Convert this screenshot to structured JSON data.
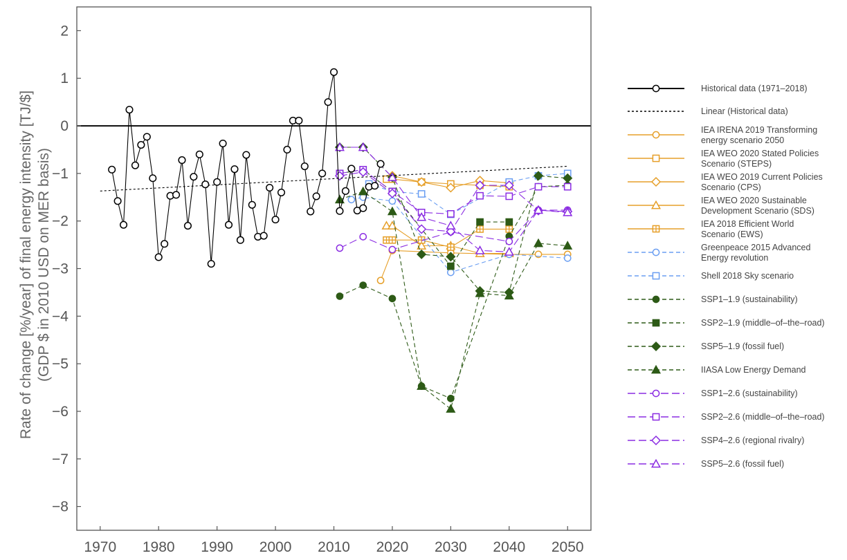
{
  "chart_data": {
    "type": "line",
    "title": "",
    "ylabel": [
      "Rate of change [%/year] of final energy intensity [TJ/$]",
      "(GDP $ in 2010 USD on MER basis)"
    ],
    "xlabel": "",
    "xlim": [
      1966,
      2054
    ],
    "ylim": [
      -8.5,
      2.5
    ],
    "x_ticks": [
      1970,
      1980,
      1990,
      2000,
      2010,
      2020,
      2030,
      2040,
      2050
    ],
    "y_ticks": [
      2,
      1,
      0,
      -1,
      -2,
      -3,
      -4,
      -5,
      -6,
      -7,
      -8
    ],
    "x_tick_labels": [
      "1970",
      "1980",
      "1990",
      "2000",
      "2010",
      "2020",
      "2030",
      "2040",
      "2050"
    ],
    "y_tick_labels": [
      "2",
      "1",
      "0",
      "−1",
      "−2",
      "−3",
      "−4",
      "−5",
      "−6",
      "−7",
      "−8"
    ],
    "zero_line": 0,
    "grid": false,
    "legend_position": "right",
    "colors": {
      "historical": "#000000",
      "iea": "#e69f28",
      "greenpeace_shell": "#6a9ef2",
      "ssp_19": "#2d5a16",
      "ssp_26": "#8a2be2"
    },
    "series": [
      {
        "name": "Historical data (1971–2018)",
        "color": "#000000",
        "marker": "circle-open",
        "line": "solid",
        "x": [
          1972,
          1973,
          1974,
          1975,
          1976,
          1977,
          1978,
          1979,
          1980,
          1981,
          1982,
          1983,
          1984,
          1985,
          1986,
          1987,
          1988,
          1989,
          1990,
          1991,
          1992,
          1993,
          1994,
          1995,
          1996,
          1997,
          1998,
          1999,
          2000,
          2001,
          2002,
          2003,
          2004,
          2005,
          2006,
          2007,
          2008,
          2009,
          2010,
          2011,
          2012,
          2013,
          2014,
          2015,
          2016,
          2017,
          2018
        ],
        "y": [
          -0.92,
          -1.58,
          -2.08,
          0.34,
          -0.83,
          -0.4,
          -0.23,
          -1.1,
          -2.76,
          -2.48,
          -1.47,
          -1.45,
          -0.72,
          -2.1,
          -1.07,
          -0.6,
          -1.23,
          -2.9,
          -1.18,
          -0.37,
          -2.08,
          -0.91,
          -2.4,
          -0.61,
          -1.66,
          -2.33,
          -2.31,
          -1.3,
          -1.97,
          -1.4,
          -0.5,
          0.11,
          0.11,
          -0.85,
          -1.8,
          -1.48,
          -1.0,
          0.5,
          1.13,
          -1.79,
          -1.37,
          -0.9,
          -1.78,
          -1.73,
          -1.28,
          -1.26,
          -0.8
        ]
      },
      {
        "name": "Linear (Historical data)",
        "color": "#000000",
        "marker": "none",
        "line": "dotted",
        "x": [
          1970,
          2050
        ],
        "y": [
          -1.37,
          -0.85
        ]
      },
      {
        "name": "IEA IRENA 2019 Transforming energy scenario 2050",
        "color": "#e69f28",
        "marker": "circle-open",
        "line": "solid",
        "x": [
          2018,
          2020,
          2030,
          2040,
          2045,
          2050
        ],
        "y": [
          -3.25,
          -2.62,
          -2.67,
          -2.7,
          -2.7,
          -2.7
        ]
      },
      {
        "name": "IEA WEO 2020 Stated Policies Scenario (STEPS)",
        "color": "#e69f28",
        "marker": "square-open",
        "line": "solid",
        "x": [
          2019,
          2020,
          2025,
          2030,
          2035,
          2040
        ],
        "y": [
          -1.12,
          -1.12,
          -1.18,
          -1.22,
          -1.25,
          -1.28
        ]
      },
      {
        "name": "IEA WEO 2019 Current Policies Scenario (CPS)",
        "color": "#e69f28",
        "marker": "diamond-open",
        "line": "solid",
        "x": [
          2020,
          2025,
          2030,
          2035,
          2040
        ],
        "y": [
          -1.05,
          -1.18,
          -1.3,
          -1.15,
          -1.2
        ]
      },
      {
        "name": "IEA WEO 2020 Sustainable Development Scenario (SDS)",
        "color": "#e69f28",
        "marker": "triangle-open",
        "line": "solid",
        "x": [
          2019,
          2020,
          2025,
          2030,
          2035,
          2040
        ],
        "y": [
          -2.1,
          -2.1,
          -2.52,
          -2.52,
          -2.68,
          -2.68
        ]
      },
      {
        "name": "IEA 2018 Efficient World Scenario (EWS)",
        "color": "#e69f28",
        "marker": "square-plus-open",
        "line": "solid",
        "x": [
          2019,
          2020,
          2025,
          2030,
          2035,
          2040
        ],
        "y": [
          -2.4,
          -2.4,
          -2.4,
          -2.55,
          -2.17,
          -2.17
        ]
      },
      {
        "name": "Greenpeace 2015 Advanced Energy revolution",
        "color": "#6a9ef2",
        "marker": "circle-open",
        "line": "dashed",
        "x": [
          2013,
          2015,
          2020,
          2030,
          2040,
          2050
        ],
        "y": [
          -1.55,
          -1.5,
          -1.58,
          -3.08,
          -2.7,
          -2.78
        ]
      },
      {
        "name": "Shell 2018 Sky scenario",
        "color": "#6a9ef2",
        "marker": "square-open",
        "line": "dashed",
        "x": [
          2016,
          2020,
          2025,
          2030,
          2040,
          2045,
          2050
        ],
        "y": [
          -1.22,
          -1.38,
          -1.43,
          -1.86,
          -1.18,
          -1.05,
          -1.0
        ]
      },
      {
        "name": "SSP1-1.9 (sustainability)",
        "color": "#2d5a16",
        "marker": "circle-filled",
        "line": "dashed",
        "x": [
          2011,
          2015,
          2020,
          2025,
          2030,
          2040,
          2045,
          2050
        ],
        "y": [
          -3.58,
          -3.35,
          -3.63,
          -5.47,
          -5.73,
          -2.32,
          -1.28,
          -1.25
        ]
      },
      {
        "name": "SSP2-1.9 (middle-of-the-road)",
        "color": "#2d5a16",
        "marker": "square-filled",
        "line": "dashed",
        "x": [
          2011,
          2015,
          2020,
          2030,
          2035,
          2040
        ],
        "y": [
          -1.0,
          -0.92,
          -1.38,
          -2.95,
          -2.02,
          -2.02
        ]
      },
      {
        "name": "SSP5-1.9 (fossil fuel)",
        "color": "#2d5a16",
        "marker": "diamond-filled",
        "line": "dashed",
        "x": [
          2011,
          2015,
          2020,
          2025,
          2030,
          2035,
          2040,
          2045,
          2050
        ],
        "y": [
          -0.45,
          -0.45,
          -1.08,
          -2.7,
          -2.75,
          -3.47,
          -3.5,
          -1.05,
          -1.1
        ]
      },
      {
        "name": "IIASA Low Energy Demand",
        "color": "#2d5a16",
        "marker": "triangle-filled",
        "line": "dashed",
        "x": [
          2011,
          2015,
          2020,
          2025,
          2030,
          2035,
          2040,
          2045,
          2050
        ],
        "y": [
          -1.55,
          -1.38,
          -1.8,
          -5.47,
          -5.95,
          -3.52,
          -3.57,
          -2.47,
          -2.52
        ]
      },
      {
        "name": "SSP1-2.6 (sustainability)",
        "color": "#8a2be2",
        "marker": "circle-open",
        "line": "long-dash",
        "x": [
          2011,
          2015,
          2020,
          2030,
          2040,
          2045,
          2050
        ],
        "y": [
          -2.57,
          -2.33,
          -2.6,
          -2.23,
          -2.43,
          -1.77,
          -1.77
        ]
      },
      {
        "name": "SSP2-2.6 (middle-of-the-road)",
        "color": "#8a2be2",
        "marker": "square-open",
        "line": "long-dash",
        "x": [
          2011,
          2015,
          2020,
          2025,
          2030,
          2035,
          2040,
          2045,
          2050
        ],
        "y": [
          -1.0,
          -0.92,
          -1.38,
          -1.82,
          -1.85,
          -1.47,
          -1.48,
          -1.28,
          -1.28
        ]
      },
      {
        "name": "SSP4-2.6 (regional rivalry)",
        "color": "#8a2be2",
        "marker": "diamond-open",
        "line": "long-dash",
        "x": [
          2011,
          2015,
          2020,
          2025,
          2030,
          2035,
          2040,
          2045,
          2050
        ],
        "y": [
          -1.05,
          -0.97,
          -1.42,
          -2.17,
          -2.22,
          -1.25,
          -1.25,
          -1.78,
          -1.8
        ]
      },
      {
        "name": "SSP5-2.6 (fossil fuel)",
        "color": "#8a2be2",
        "marker": "triangle-open",
        "line": "long-dash",
        "x": [
          2011,
          2015,
          2020,
          2025,
          2030,
          2035,
          2040,
          2045,
          2050
        ],
        "y": [
          -0.45,
          -0.45,
          -1.08,
          -1.92,
          -2.1,
          -2.62,
          -2.65,
          -1.77,
          -1.82
        ]
      }
    ],
    "legend_labels": [
      [
        "Historical data (1971–2018)"
      ],
      [
        "Linear (Historical data)"
      ],
      [
        "IEA IRENA 2019 Transforming",
        "energy scenario 2050"
      ],
      [
        "IEA WEO 2020 Stated Policies",
        "Scenario (STEPS)"
      ],
      [
        "IEA WEO 2019 Current Policies",
        "Scenario (CPS)"
      ],
      [
        "IEA WEO 2020 Sustainable",
        "Development Scenario (SDS)"
      ],
      [
        "IEA 2018 Efficient World",
        "Scenario (EWS)"
      ],
      [
        "Greenpeace 2015 Advanced",
        "Energy revolution"
      ],
      [
        "Shell 2018 Sky scenario"
      ],
      [
        "SSP1–1.9 (sustainability)"
      ],
      [
        "SSP2–1.9 (middle–of–the–road)"
      ],
      [
        "SSP5–1.9 (fossil fuel)"
      ],
      [
        "IIASA Low Energy Demand"
      ],
      [
        "SSP1–2.6 (sustainability)"
      ],
      [
        "SSP2–2.6 (middle–of–the–road)"
      ],
      [
        "SSP4–2.6 (regional rivalry)"
      ],
      [
        "SSP5–2.6 (fossil fuel)"
      ]
    ]
  }
}
